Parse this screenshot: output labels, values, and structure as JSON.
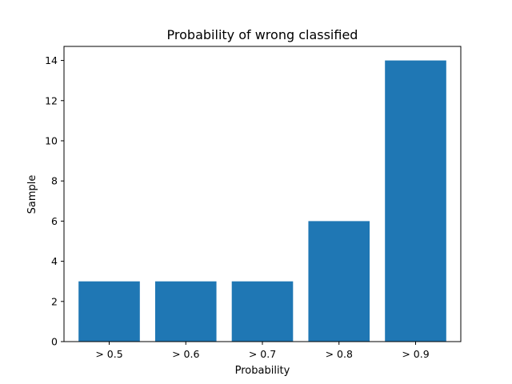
{
  "chart_data": {
    "type": "bar",
    "title": "Probability of wrong classified",
    "xlabel": "Probability",
    "ylabel": "Sample",
    "categories": [
      "> 0.5",
      "> 0.6",
      "> 0.7",
      "> 0.8",
      "> 0.9"
    ],
    "values": [
      3,
      3,
      3,
      6,
      14
    ],
    "ylim": [
      0,
      14.7
    ],
    "yticks": [
      0,
      2,
      4,
      6,
      8,
      10,
      12,
      14
    ],
    "grid": false,
    "legend": "none",
    "bar_color": "#1f77b4"
  }
}
